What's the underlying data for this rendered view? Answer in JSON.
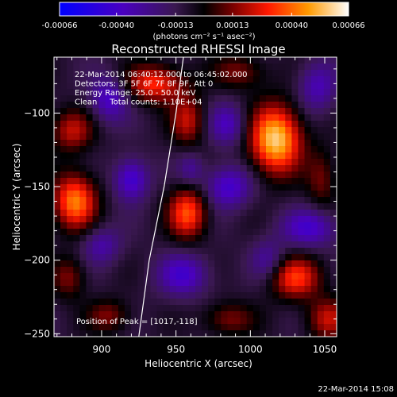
{
  "chart_data": {
    "type": "heatmap",
    "title": "Reconstructed RHESSI Image",
    "xlabel": "Heliocentric X (arcsec)",
    "ylabel": "Heliocentric Y (arcsec)",
    "xlim": [
      868,
      1058
    ],
    "ylim": [
      -252,
      -62
    ],
    "x_ticks": [
      900,
      950,
      1000,
      1050
    ],
    "y_ticks": [
      -100,
      -150,
      -200,
      -250
    ],
    "colorbar": {
      "range": [
        -0.00066,
        0.00066
      ],
      "tick_values": [
        -0.00066,
        -0.0004,
        -0.00013,
        0.00013,
        0.0004,
        0.00066
      ],
      "tick_labels": [
        "-0.00066",
        "-0.00040",
        "-0.00013",
        "0.00013",
        "0.00040",
        "0.00066"
      ],
      "unit_label": "(photons cm⁻² s⁻¹ asec⁻²)"
    },
    "annotations": [
      "22-Mar-2014 06:40:12.000 to 06:45:02.000",
      "Detectors: 3F 5F 6F 7F 8F 9F, Att 0",
      "Energy Range: 25.0 - 50.0 keV",
      "Clean     Total counts: 1.10E+04"
    ],
    "peak_label": "Position of Peak = [1017,-118]",
    "peak": {
      "x": 1017,
      "y": -118,
      "value": 0.00066
    },
    "limb_curve": [
      [
        955,
        -62
      ],
      [
        950,
        -100
      ],
      [
        942,
        -150
      ],
      [
        932,
        -200
      ],
      [
        925,
        -252
      ]
    ],
    "sources": [
      {
        "x": 1017,
        "y": -118,
        "sx": 12,
        "sy": 16,
        "a": 0.00066
      },
      {
        "x": 882,
        "y": -160,
        "sx": 10,
        "sy": 13,
        "a": 0.00052
      },
      {
        "x": 958,
        "y": -168,
        "sx": 9,
        "sy": 12,
        "a": 0.00045
      },
      {
        "x": 936,
        "y": -80,
        "sx": 14,
        "sy": 9,
        "a": 0.0004
      },
      {
        "x": 880,
        "y": -112,
        "sx": 10,
        "sy": 10,
        "a": 0.0003
      },
      {
        "x": 958,
        "y": -105,
        "sx": 8,
        "sy": 12,
        "a": 0.0003
      },
      {
        "x": 993,
        "y": -72,
        "sx": 12,
        "sy": 8,
        "a": 0.00022
      },
      {
        "x": 1030,
        "y": -212,
        "sx": 12,
        "sy": 10,
        "a": 0.0004
      },
      {
        "x": 1052,
        "y": -240,
        "sx": 10,
        "sy": 10,
        "a": 0.0003
      },
      {
        "x": 878,
        "y": -212,
        "sx": 8,
        "sy": 10,
        "a": 0.00022
      },
      {
        "x": 905,
        "y": -238,
        "sx": 10,
        "sy": 8,
        "a": 0.00022
      },
      {
        "x": 985,
        "y": -240,
        "sx": 12,
        "sy": 8,
        "a": 0.00022
      },
      {
        "x": 1048,
        "y": -145,
        "sx": 7,
        "sy": 14,
        "a": 0.0002
      },
      {
        "x": 905,
        "y": -90,
        "sx": 9,
        "sy": 11,
        "a": -0.0003
      },
      {
        "x": 920,
        "y": -145,
        "sx": 8,
        "sy": 10,
        "a": -0.00035
      },
      {
        "x": 985,
        "y": -150,
        "sx": 11,
        "sy": 10,
        "a": -0.00032
      },
      {
        "x": 985,
        "y": -108,
        "sx": 9,
        "sy": 10,
        "a": -0.00026
      },
      {
        "x": 1040,
        "y": -178,
        "sx": 13,
        "sy": 9,
        "a": -0.0003
      },
      {
        "x": 955,
        "y": -210,
        "sx": 12,
        "sy": 10,
        "a": -0.0003
      },
      {
        "x": 900,
        "y": -190,
        "sx": 9,
        "sy": 9,
        "a": -0.00022
      },
      {
        "x": 1045,
        "y": -82,
        "sx": 9,
        "sy": 12,
        "a": -0.00025
      },
      {
        "x": 1012,
        "y": -200,
        "sx": 8,
        "sy": 10,
        "a": -0.0002
      },
      {
        "x": 960,
        "y": -138,
        "sx": 6,
        "sy": 8,
        "a": -0.00018
      }
    ]
  },
  "footer": {
    "timestamp": "22-Mar-2014 15:08"
  }
}
